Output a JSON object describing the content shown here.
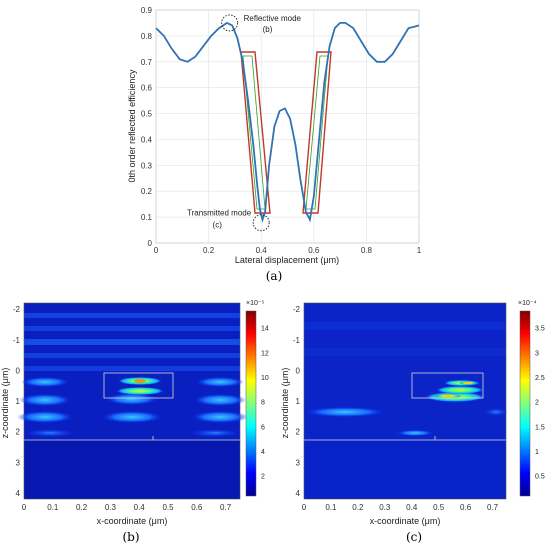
{
  "chart_data": [
    {
      "type": "line",
      "xlabel": "Lateral displacement (μm)",
      "ylabel": "0th order reflected efficiency",
      "xlim": [
        0,
        1
      ],
      "ylim": [
        0,
        0.9
      ],
      "xticks": [
        "0",
        "0.2",
        "0.4",
        "0.6",
        "0.8",
        "1"
      ],
      "yticks": [
        "0",
        "0.1",
        "0.2",
        "0.3",
        "0.4",
        "0.5",
        "0.6",
        "0.7",
        "0.8",
        "0.9"
      ],
      "grid": true,
      "line_color": "#2f73b5",
      "x": [
        0,
        0.03,
        0.06,
        0.09,
        0.12,
        0.15,
        0.18,
        0.21,
        0.24,
        0.27,
        0.29,
        0.31,
        0.33,
        0.35,
        0.37,
        0.385,
        0.395,
        0.405,
        0.415,
        0.43,
        0.45,
        0.47,
        0.49,
        0.51,
        0.53,
        0.55,
        0.57,
        0.585,
        0.6,
        0.62,
        0.64,
        0.66,
        0.68,
        0.7,
        0.72,
        0.75,
        0.78,
        0.81,
        0.84,
        0.87,
        0.9,
        0.93,
        0.96,
        1.0
      ],
      "y": [
        0.83,
        0.8,
        0.75,
        0.71,
        0.7,
        0.72,
        0.76,
        0.8,
        0.83,
        0.85,
        0.84,
        0.79,
        0.7,
        0.55,
        0.38,
        0.22,
        0.13,
        0.09,
        0.12,
        0.3,
        0.45,
        0.51,
        0.52,
        0.48,
        0.38,
        0.24,
        0.12,
        0.09,
        0.18,
        0.4,
        0.62,
        0.76,
        0.83,
        0.85,
        0.85,
        0.83,
        0.78,
        0.73,
        0.7,
        0.7,
        0.73,
        0.78,
        0.83,
        0.84
      ],
      "annotations": [
        {
          "text": "Reflective mode",
          "sub": "(b)",
          "x": 0.28,
          "y": 0.85
        },
        {
          "text": "Transmitted mode",
          "sub": "(c)",
          "x": 0.4,
          "y": 0.09
        }
      ],
      "highlight_color": "#c0392b",
      "caption": "(a)"
    },
    {
      "type": "heatmap",
      "xlabel": "x-coordinate (μm)",
      "ylabel": "z-coordinate (μm)",
      "xlim": [
        0,
        0.75
      ],
      "ylim": [
        -2.2,
        4.2
      ],
      "xticks": [
        "0",
        "0.1",
        "0.2",
        "0.3",
        "0.4",
        "0.5",
        "0.6",
        "0.7"
      ],
      "yticks": [
        "-2",
        "-1",
        "0",
        "1",
        "2",
        "3",
        "4"
      ],
      "colorbar": {
        "scale": "×10⁻⁵",
        "ticks": [
          "2",
          "4",
          "6",
          "8",
          "10",
          "12",
          "14"
        ]
      },
      "caption": "(b)"
    },
    {
      "type": "heatmap",
      "xlabel": "x-coordinate (μm)",
      "ylabel": "z-coordinate (μm)",
      "xlim": [
        0,
        0.75
      ],
      "ylim": [
        -2.2,
        4.2
      ],
      "xticks": [
        "0",
        "0.1",
        "0.2",
        "0.3",
        "0.4",
        "0.5",
        "0.6",
        "0.7"
      ],
      "yticks": [
        "-2",
        "-1",
        "0",
        "1",
        "2",
        "3",
        "4"
      ],
      "colorbar": {
        "scale": "×10⁻⁴",
        "ticks": [
          "0.5",
          "1",
          "1.5",
          "2",
          "2.5",
          "3",
          "3.5"
        ]
      },
      "caption": "(c)"
    }
  ]
}
